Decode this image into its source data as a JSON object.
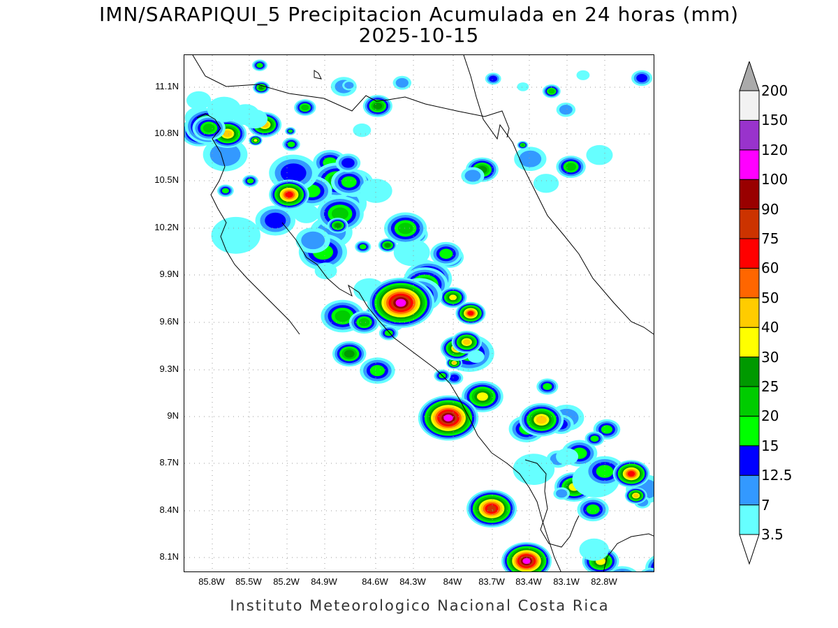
{
  "title_line1": "IMN/SARAPIQUI_5 Precipitacion Acumulada en 24 horas (mm)",
  "title_line2": "2025-10-15",
  "footer": "Instituto Meteorologico Nacional Costa Rica",
  "map": {
    "lat_ticks": [
      "11.1N",
      "10.8N",
      "10.5N",
      "10.2N",
      "9.9N",
      "9.6N",
      "9.3N",
      "9N",
      "8.7N",
      "8.4N",
      "8.1N"
    ],
    "lon_ticks": [
      "85.8W",
      "85.5W",
      "85.2W",
      "84.9W",
      "84.6W",
      "84.3W",
      "84W",
      "83.7W",
      "83.4W",
      "83.1W",
      "82.8W"
    ],
    "grid": "dotted"
  },
  "legend": {
    "levels": [
      "3.5",
      "7",
      "12.5",
      "15",
      "20",
      "25",
      "30",
      "40",
      "50",
      "60",
      "75",
      "90",
      "100",
      "120",
      "150",
      "200"
    ],
    "colors": [
      "#66ffff",
      "#3399ff",
      "#0000ff",
      "#00ff00",
      "#00cc00",
      "#009900",
      "#ffff00",
      "#ffcc00",
      "#ff6600",
      "#ff0000",
      "#cc3300",
      "#990000",
      "#ff00ff",
      "#9933cc",
      "#f2f2f2",
      "#aaaaaa"
    ]
  }
}
